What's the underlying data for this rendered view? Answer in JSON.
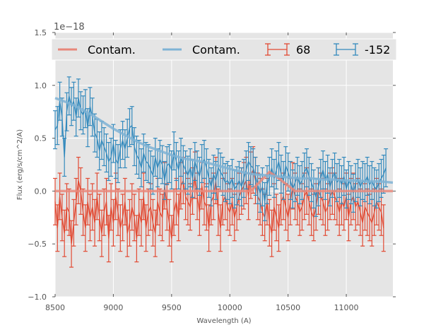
{
  "chart_data": {
    "type": "line",
    "title": "",
    "xlabel": "Wavelength (A)",
    "ylabel": "Flux (erg/s/cm^2/A)",
    "y_offset_label": "1e−18",
    "xlim": [
      8500,
      11400
    ],
    "ylim": [
      -1.0,
      1.5
    ],
    "x_ticks": [
      8500,
      9000,
      9500,
      10000,
      10500,
      11000
    ],
    "x_tick_labels": [
      "8500",
      "9000",
      "9500",
      "10000",
      "10500",
      "11000"
    ],
    "y_ticks": [
      -1.0,
      -0.5,
      0.0,
      0.5,
      1.0,
      1.5
    ],
    "y_tick_labels": [
      "−1.0",
      "−0.5",
      "0.0",
      "0.5",
      "1.0",
      "1.5"
    ],
    "grid": true,
    "background": "#e5e5e5",
    "legend": {
      "placement": "top",
      "ncol": 4,
      "entries": [
        {
          "label": "Contam.",
          "kind": "line",
          "color": "#e8877a"
        },
        {
          "label": "Contam.",
          "kind": "line",
          "color": "#7fb3d5"
        },
        {
          "label": "68",
          "kind": "errorbar",
          "color": "#e24a33"
        },
        {
          "label": "-152",
          "kind": "errorbar",
          "color": "#348abd"
        }
      ]
    },
    "series": [
      {
        "name": "Contam. (68)",
        "kind": "line",
        "color": "#e8877a",
        "x": [
          8500,
          10180,
          10340,
          10420,
          10560,
          11400
        ],
        "y": [
          0.0,
          0.0,
          0.18,
          0.12,
          0.0,
          0.0
        ]
      },
      {
        "name": "Contam. (-152)",
        "kind": "line",
        "color": "#7fb3d5",
        "x": [
          8500,
          8600,
          8700,
          8800,
          8900,
          9000,
          9100,
          9200,
          9300,
          9400,
          9500,
          9600,
          9700,
          9800,
          9900,
          10000,
          10100,
          10200,
          10300,
          10400,
          10500,
          10600,
          10700,
          10800,
          10900,
          11000,
          11100,
          11200,
          11300,
          11400
        ],
        "y": [
          0.88,
          0.84,
          0.79,
          0.73,
          0.66,
          0.59,
          0.53,
          0.47,
          0.42,
          0.38,
          0.34,
          0.31,
          0.29,
          0.27,
          0.24,
          0.21,
          0.18,
          0.16,
          0.15,
          0.14,
          0.13,
          0.12,
          0.12,
          0.11,
          0.11,
          0.1,
          0.1,
          0.09,
          0.09,
          0.08
        ]
      },
      {
        "name": "68",
        "kind": "errorbar",
        "color": "#e24a33",
        "x_start": 8500,
        "x_step": 20,
        "y": [
          -0.1,
          -0.35,
          -0.05,
          -0.25,
          -0.4,
          -0.15,
          -0.2,
          -0.5,
          -0.3,
          -0.1,
          0.1,
          0.0,
          -0.2,
          -0.35,
          -0.1,
          -0.25,
          -0.15,
          -0.3,
          -0.05,
          -0.25,
          -0.4,
          -0.2,
          -0.1,
          -0.45,
          -0.15,
          -0.3,
          -0.05,
          -0.2,
          -0.35,
          -0.25,
          -0.1,
          -0.4,
          -0.3,
          -0.15,
          -0.25,
          -0.45,
          -0.2,
          -0.3,
          -0.05,
          -0.35,
          -0.2,
          -0.15,
          -0.3,
          -0.4,
          -0.1,
          -0.2,
          -0.25,
          0.05,
          -0.15,
          -0.3,
          -0.45,
          -0.2,
          -0.1,
          -0.25,
          0.05,
          0.1,
          -0.05,
          -0.1,
          -0.15,
          0.0,
          0.15,
          -0.05,
          -0.2,
          0.05,
          -0.1,
          -0.15,
          -0.35,
          -0.1,
          -0.05,
          0.1,
          -0.2,
          -0.35,
          -0.1,
          -0.05,
          -0.15,
          -0.2,
          -0.1,
          -0.25,
          -0.15,
          -0.05,
          0.0,
          0.05,
          0.1,
          -0.05,
          0.15,
          0.2,
          0.1,
          -0.05,
          -0.1,
          -0.2,
          -0.25,
          -0.1,
          -0.3,
          -0.4,
          -0.15,
          -0.25,
          -0.35,
          -0.1,
          -0.05,
          -0.15,
          -0.25,
          -0.1,
          0.05,
          -0.05,
          -0.1,
          -0.2,
          -0.15,
          -0.05,
          0.0,
          -0.1,
          -0.2,
          -0.25,
          -0.15,
          0.0,
          -0.05,
          -0.1,
          -0.2,
          -0.15,
          -0.05,
          0.0,
          -0.05,
          -0.1,
          -0.2,
          -0.1,
          -0.15,
          -0.05,
          -0.25,
          -0.1,
          -0.05,
          -0.15,
          -0.1,
          -0.2,
          -0.3,
          -0.15,
          -0.2,
          -0.25,
          -0.3,
          -0.2,
          -0.1,
          -0.15,
          -0.2,
          -0.35
        ],
        "err": 0.22
      },
      {
        "name": "-152",
        "kind": "errorbar",
        "color": "#348abd",
        "x_start": 8500,
        "x_step": 20,
        "y": [
          0.58,
          0.62,
          0.85,
          0.7,
          0.32,
          0.75,
          0.9,
          0.8,
          0.85,
          0.7,
          0.88,
          0.76,
          0.72,
          0.78,
          0.6,
          0.8,
          0.7,
          0.55,
          0.5,
          0.38,
          0.48,
          0.42,
          0.36,
          0.28,
          0.32,
          0.45,
          0.3,
          0.26,
          0.4,
          0.48,
          0.4,
          0.5,
          0.6,
          0.62,
          0.42,
          0.34,
          0.3,
          0.22,
          0.36,
          0.28,
          0.26,
          0.2,
          0.15,
          0.32,
          0.22,
          0.3,
          0.25,
          0.1,
          0.24,
          0.26,
          0.2,
          0.38,
          0.28,
          0.2,
          0.32,
          0.25,
          0.2,
          0.15,
          0.22,
          0.12,
          0.28,
          0.2,
          0.14,
          0.26,
          0.3,
          0.22,
          0.12,
          0.04,
          0.16,
          0.1,
          0.22,
          0.18,
          0.14,
          0.08,
          0.1,
          0.06,
          0.12,
          0.02,
          0.05,
          0.1,
          0.04,
          0.12,
          0.2,
          0.28,
          0.24,
          0.22,
          0.14,
          0.06,
          -0.02,
          0.04,
          -0.1,
          0.06,
          0.14,
          0.22,
          0.12,
          0.2,
          0.28,
          0.16,
          0.1,
          0.24,
          0.18,
          0.1,
          0.02,
          0.08,
          0.14,
          0.06,
          0.1,
          0.18,
          0.22,
          0.14,
          0.08,
          0.02,
          -0.06,
          0.04,
          0.12,
          0.2,
          0.1,
          0.16,
          0.04,
          0.12,
          0.18,
          0.08,
          0.12,
          0.06,
          0.14,
          0.02,
          0.1,
          0.06,
          -0.02,
          0.08,
          0.12,
          0.04,
          0.1,
          0.08,
          0.14,
          0.06,
          0.1,
          0.04,
          0.02,
          0.08,
          0.12,
          0.16,
          0.22
        ],
        "err": 0.18
      }
    ]
  }
}
